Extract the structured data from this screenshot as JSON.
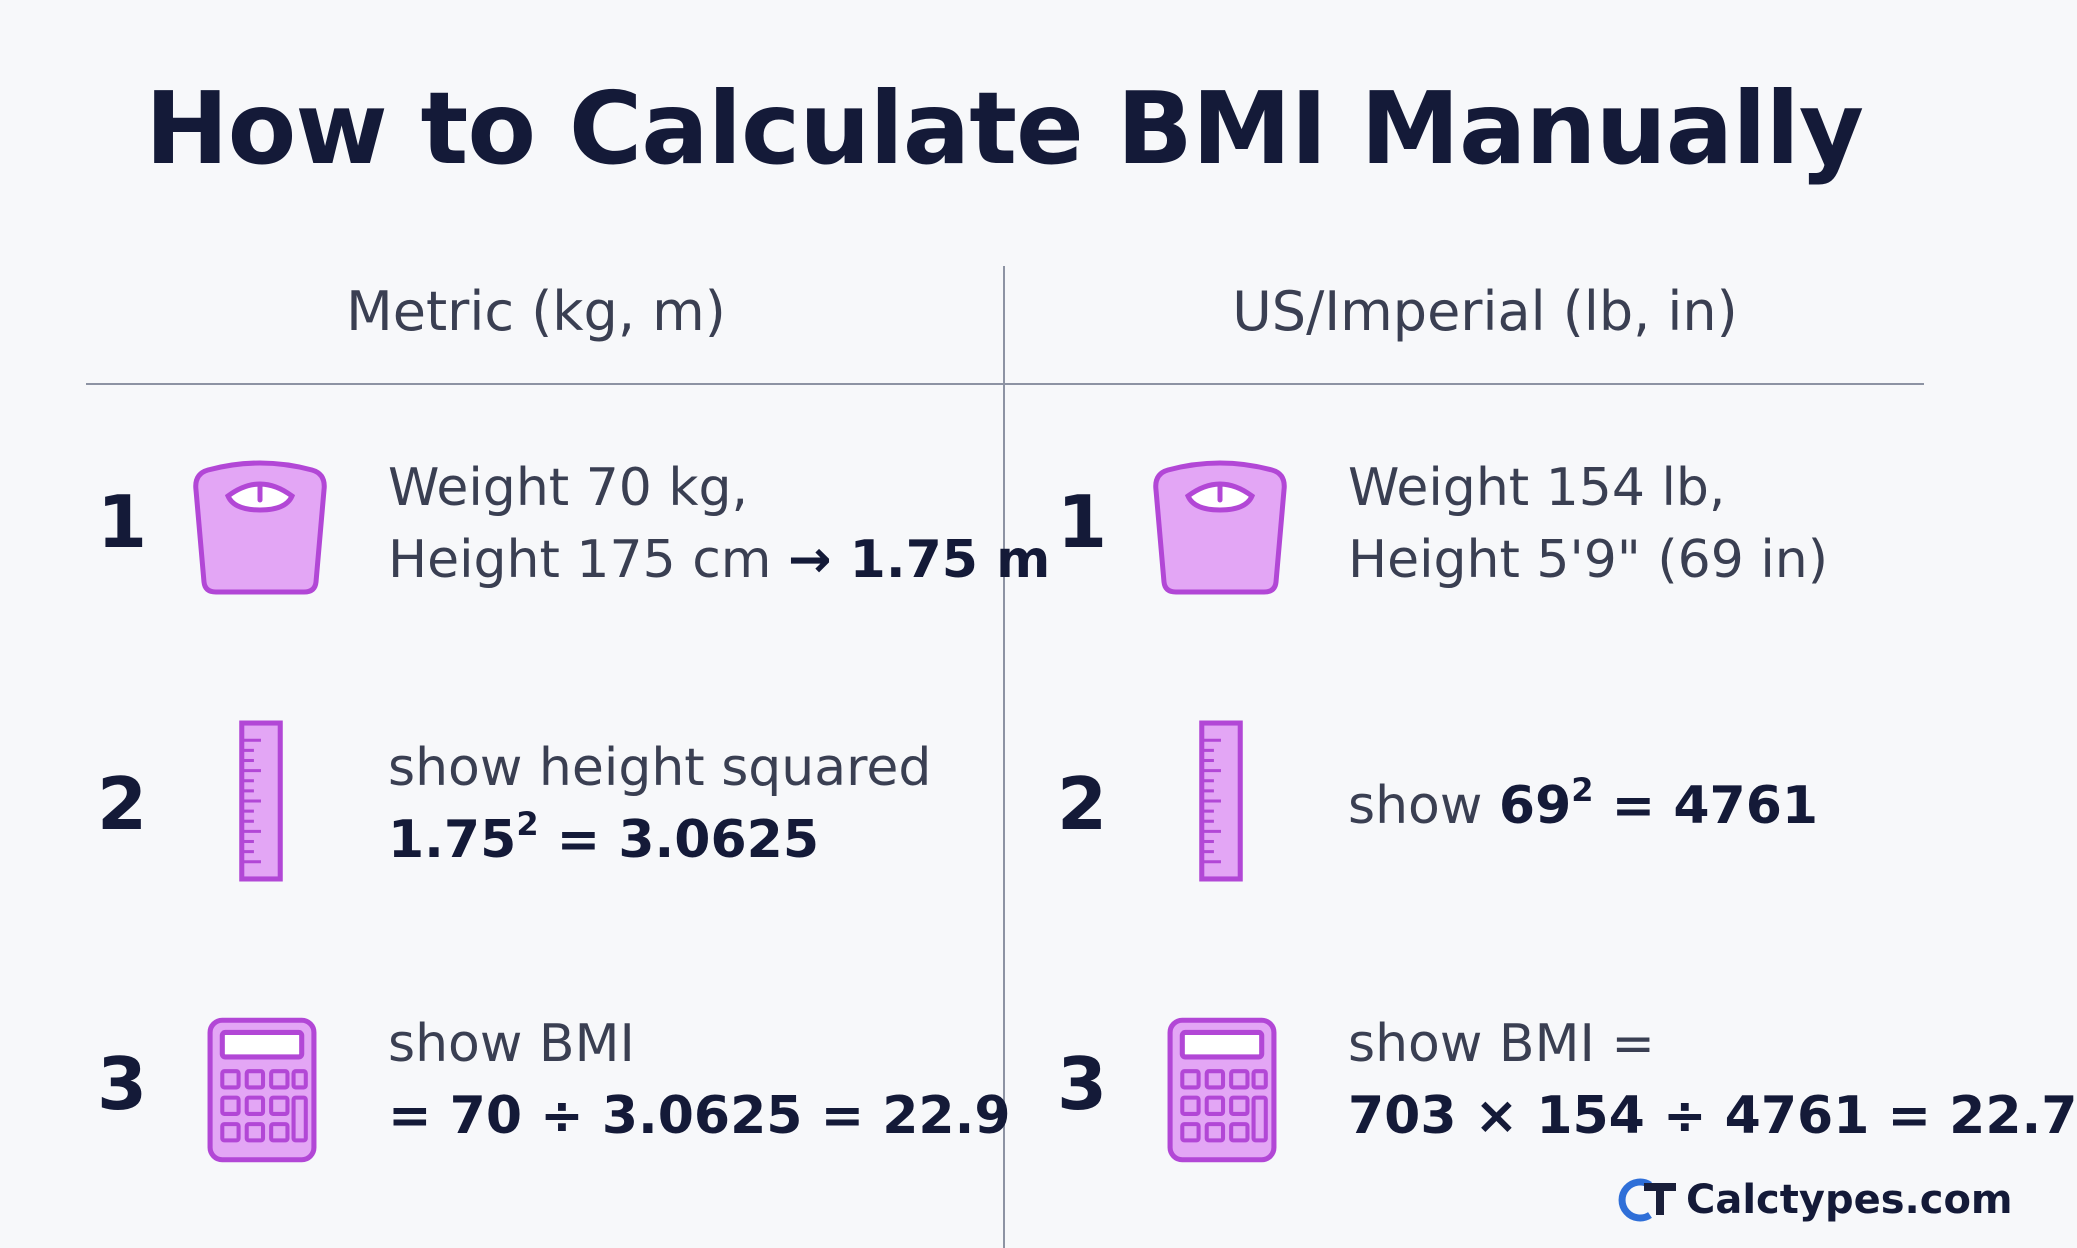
{
  "title": "How to Calculate BMI Manually",
  "colors": {
    "icon_fill": "#e3a6f5",
    "icon_stroke": "#b247d6",
    "text_dark": "#141a38",
    "text_mid": "#3a3f52"
  },
  "metric": {
    "heading": "Metric (kg, m)",
    "steps": [
      {
        "num": "1",
        "icon": "scale-icon",
        "line1": "Weight 70 kg,",
        "line2_a": "Height 175 cm ",
        "line2_arrow": "→",
        "line2_b": " 1.75 m"
      },
      {
        "num": "2",
        "icon": "ruler-icon",
        "line1": "show height squared",
        "line2_base": "1.75",
        "line2_exp": "2",
        "line2_rest": " = 3.0625"
      },
      {
        "num": "3",
        "icon": "calculator-icon",
        "line1": "show BMI",
        "line2": "= 70 ÷ 3.0625 = 22.9"
      }
    ]
  },
  "imperial": {
    "heading": "US/Imperial (lb, in)",
    "steps": [
      {
        "num": "1",
        "icon": "scale-icon",
        "line1": "Weight 154 lb,",
        "line2": "Height 5'9\" (69 in)"
      },
      {
        "num": "2",
        "icon": "ruler-icon",
        "line1_prefix": "show ",
        "line1_base": "69",
        "line1_exp": "2",
        "line1_rest": " = 4761"
      },
      {
        "num": "3",
        "icon": "calculator-icon",
        "line1": "show BMI =",
        "line2": "703 × 154 ÷ 4761 = 22.7"
      }
    ]
  },
  "logo": {
    "mark": "CT",
    "text": "Calctypes.com"
  }
}
